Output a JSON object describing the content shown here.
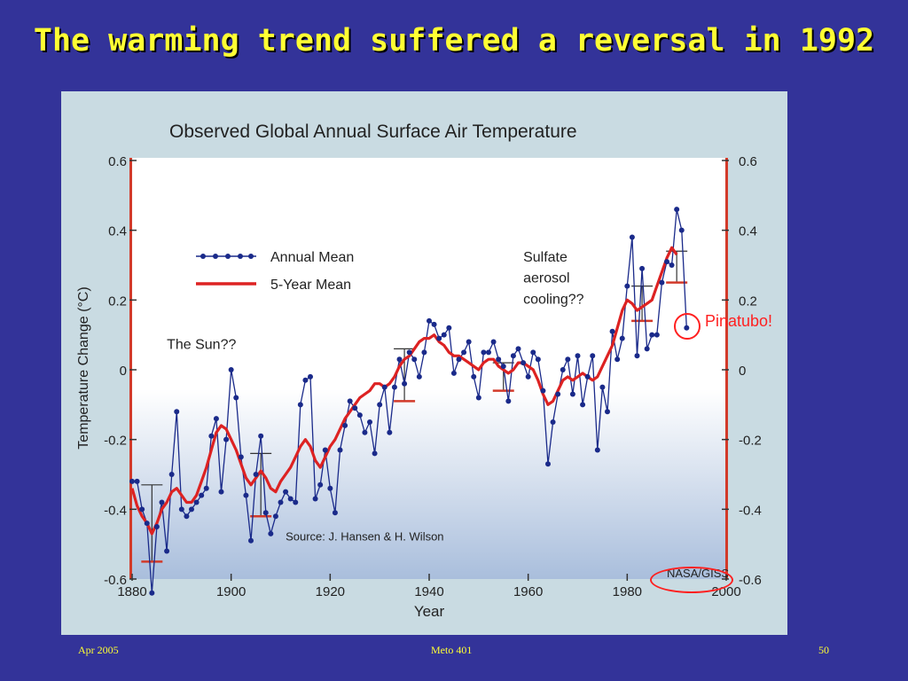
{
  "slide": {
    "title": "The warming trend suffered a reversal in 1992",
    "footer_left": "Apr 2005",
    "footer_center": "Meto 401",
    "footer_right": "50",
    "pinatubo_label": "Pinatubo!"
  },
  "chart_data": {
    "type": "line",
    "title": "Observed Global Annual Surface Air Temperature",
    "xlabel": "Year",
    "ylabel": "Temperature Change (°C)",
    "xlim": [
      1880,
      2000
    ],
    "ylim": [
      -0.6,
      0.6
    ],
    "x_ticks": [
      1880,
      1900,
      1920,
      1940,
      1960,
      1980,
      2000
    ],
    "y_ticks": [
      -0.6,
      -0.4,
      -0.2,
      0,
      0.2,
      0.4,
      0.6
    ],
    "y_tick_labels": [
      "-0.6",
      "-0.4",
      "-0.2",
      "0",
      "0.2",
      "0.4",
      "0.6"
    ],
    "grid": false,
    "legend_position": "top-left",
    "annotations": [
      {
        "text": "The Sun??",
        "x": 1887,
        "y": 0.06
      },
      {
        "text": "Sulfate",
        "x": 1959,
        "y": 0.31
      },
      {
        "text": "aerosol",
        "x": 1959,
        "y": 0.25
      },
      {
        "text": "cooling??",
        "x": 1959,
        "y": 0.19
      },
      {
        "text": "Source:   J. Hansen & H. Wilson",
        "x": 1911,
        "y": -0.49
      },
      {
        "text": "NASA/GISS",
        "x": 1988,
        "y": -0.595
      }
    ],
    "series": [
      {
        "name": "Annual Mean",
        "color": "#1a2a8a",
        "x": [
          1880,
          1881,
          1882,
          1883,
          1884,
          1885,
          1886,
          1887,
          1888,
          1889,
          1890,
          1891,
          1892,
          1893,
          1894,
          1895,
          1896,
          1897,
          1898,
          1899,
          1900,
          1901,
          1902,
          1903,
          1904,
          1905,
          1906,
          1907,
          1908,
          1909,
          1910,
          1911,
          1912,
          1913,
          1914,
          1915,
          1916,
          1917,
          1918,
          1919,
          1920,
          1921,
          1922,
          1923,
          1924,
          1925,
          1926,
          1927,
          1928,
          1929,
          1930,
          1931,
          1932,
          1933,
          1934,
          1935,
          1936,
          1937,
          1938,
          1939,
          1940,
          1941,
          1942,
          1943,
          1944,
          1945,
          1946,
          1947,
          1948,
          1949,
          1950,
          1951,
          1952,
          1953,
          1954,
          1955,
          1956,
          1957,
          1958,
          1959,
          1960,
          1961,
          1962,
          1963,
          1964,
          1965,
          1966,
          1967,
          1968,
          1969,
          1970,
          1971,
          1972,
          1973,
          1974,
          1975,
          1976,
          1977,
          1978,
          1979,
          1980,
          1981,
          1982,
          1983,
          1984,
          1985,
          1986,
          1987,
          1988,
          1989,
          1990,
          1991,
          1992
        ],
        "values": [
          -0.32,
          -0.32,
          -0.4,
          -0.44,
          -0.64,
          -0.45,
          -0.38,
          -0.52,
          -0.3,
          -0.12,
          -0.4,
          -0.42,
          -0.4,
          -0.38,
          -0.36,
          -0.34,
          -0.19,
          -0.14,
          -0.35,
          -0.2,
          0.0,
          -0.08,
          -0.25,
          -0.36,
          -0.49,
          -0.3,
          -0.19,
          -0.41,
          -0.47,
          -0.42,
          -0.38,
          -0.35,
          -0.37,
          -0.38,
          -0.1,
          -0.03,
          -0.02,
          -0.37,
          -0.33,
          -0.23,
          -0.34,
          -0.41,
          -0.23,
          -0.16,
          -0.09,
          -0.11,
          -0.13,
          -0.18,
          -0.15,
          -0.24,
          -0.1,
          -0.05,
          -0.18,
          -0.05,
          0.03,
          -0.04,
          0.05,
          0.03,
          -0.02,
          0.05,
          0.14,
          0.13,
          0.09,
          0.1,
          0.12,
          -0.01,
          0.03,
          0.05,
          0.08,
          -0.02,
          -0.08,
          0.05,
          0.05,
          0.08,
          0.03,
          0.01,
          -0.09,
          0.04,
          0.06,
          0.02,
          -0.02,
          0.05,
          0.03,
          -0.06,
          -0.27,
          -0.15,
          -0.07,
          0.0,
          0.03,
          -0.07,
          0.04,
          -0.1,
          -0.02,
          0.04,
          -0.23,
          -0.05,
          -0.12,
          0.11,
          0.03,
          0.09,
          0.24,
          0.38,
          0.04,
          0.29,
          0.06,
          0.1,
          0.1,
          0.25,
          0.31,
          0.3,
          0.46,
          0.4,
          0.12
        ]
      },
      {
        "name": "5-Year Mean",
        "color": "#dd2222",
        "x": [
          1880,
          1881,
          1882,
          1883,
          1884,
          1885,
          1886,
          1887,
          1888,
          1889,
          1890,
          1891,
          1892,
          1893,
          1894,
          1895,
          1896,
          1897,
          1898,
          1899,
          1900,
          1901,
          1902,
          1903,
          1904,
          1905,
          1906,
          1907,
          1908,
          1909,
          1910,
          1911,
          1912,
          1913,
          1914,
          1915,
          1916,
          1917,
          1918,
          1919,
          1920,
          1921,
          1922,
          1923,
          1924,
          1925,
          1926,
          1927,
          1928,
          1929,
          1930,
          1931,
          1932,
          1933,
          1934,
          1935,
          1936,
          1937,
          1938,
          1939,
          1940,
          1941,
          1942,
          1943,
          1944,
          1945,
          1946,
          1947,
          1948,
          1949,
          1950,
          1951,
          1952,
          1953,
          1954,
          1955,
          1956,
          1957,
          1958,
          1959,
          1960,
          1961,
          1962,
          1963,
          1964,
          1965,
          1966,
          1967,
          1968,
          1969,
          1970,
          1971,
          1972,
          1973,
          1974,
          1975,
          1976,
          1977,
          1978,
          1979,
          1980,
          1981,
          1982,
          1983,
          1984,
          1985,
          1986,
          1987,
          1988,
          1989,
          1990
        ],
        "values": [
          -0.34,
          -0.39,
          -0.42,
          -0.44,
          -0.47,
          -0.44,
          -0.4,
          -0.38,
          -0.35,
          -0.34,
          -0.36,
          -0.38,
          -0.38,
          -0.36,
          -0.32,
          -0.28,
          -0.23,
          -0.18,
          -0.16,
          -0.17,
          -0.2,
          -0.23,
          -0.27,
          -0.31,
          -0.33,
          -0.31,
          -0.29,
          -0.31,
          -0.34,
          -0.35,
          -0.32,
          -0.3,
          -0.28,
          -0.25,
          -0.22,
          -0.2,
          -0.22,
          -0.26,
          -0.28,
          -0.25,
          -0.22,
          -0.2,
          -0.17,
          -0.14,
          -0.12,
          -0.1,
          -0.08,
          -0.07,
          -0.06,
          -0.04,
          -0.04,
          -0.05,
          -0.04,
          -0.02,
          0.01,
          0.03,
          0.04,
          0.06,
          0.08,
          0.09,
          0.09,
          0.1,
          0.08,
          0.07,
          0.05,
          0.04,
          0.04,
          0.03,
          0.02,
          0.01,
          0.0,
          0.02,
          0.03,
          0.03,
          0.01,
          0.0,
          -0.01,
          0.0,
          0.02,
          0.02,
          0.01,
          0.0,
          -0.03,
          -0.07,
          -0.1,
          -0.09,
          -0.06,
          -0.03,
          -0.02,
          -0.03,
          -0.02,
          -0.01,
          -0.02,
          -0.03,
          -0.02,
          0.01,
          0.04,
          0.07,
          0.12,
          0.17,
          0.2,
          0.19,
          0.17,
          0.18,
          0.19,
          0.2,
          0.24,
          0.28,
          0.32,
          0.35,
          0.33
        ]
      }
    ],
    "uncertainty_bars": [
      {
        "x": 1884,
        "low": -0.55,
        "high": -0.33
      },
      {
        "x": 1906,
        "low": -0.42,
        "high": -0.24
      },
      {
        "x": 1935,
        "low": -0.09,
        "high": 0.06
      },
      {
        "x": 1955,
        "low": -0.06,
        "high": 0.02
      },
      {
        "x": 1983,
        "low": 0.14,
        "high": 0.24
      },
      {
        "x": 1990,
        "low": 0.25,
        "high": 0.34
      }
    ]
  }
}
